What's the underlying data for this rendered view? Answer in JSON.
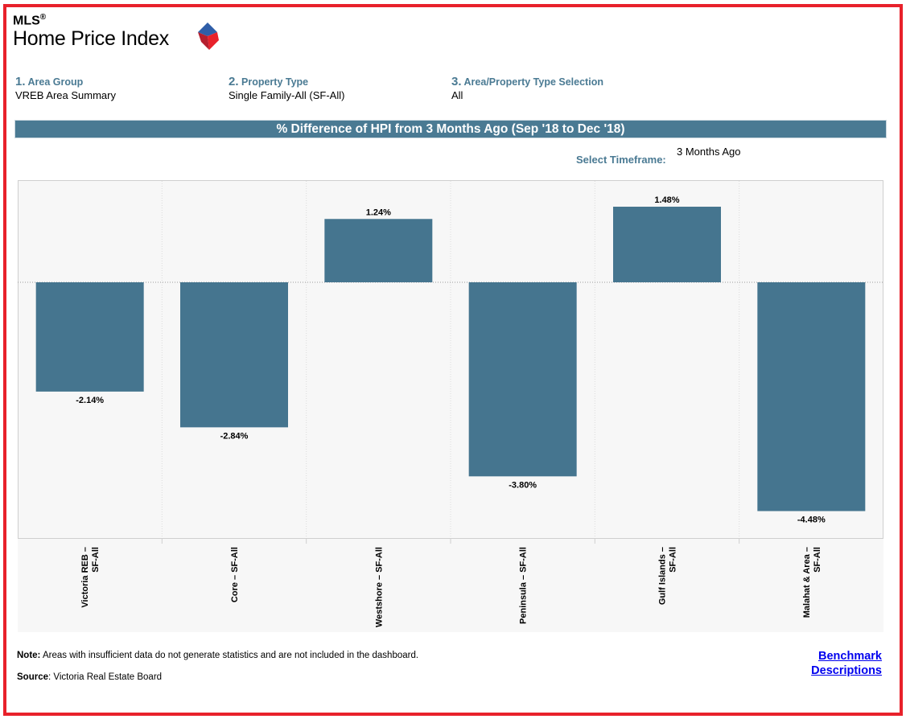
{
  "logo": {
    "mls": "MLS",
    "registered": "®",
    "title": "Home Price Index"
  },
  "filters": [
    {
      "num": "1.",
      "label": "Area Group",
      "value": "VREB Area Summary"
    },
    {
      "num": "2.",
      "label": "Property Type",
      "value": "Single Family-All (SF-All)"
    },
    {
      "num": "3.",
      "label": "Area/Property Type Selection",
      "value": "All"
    }
  ],
  "timeframe": {
    "label": "Select Timeframe:",
    "value": "3 Months Ago"
  },
  "colors": {
    "bar": "#45758f",
    "header": "#4a7a93",
    "frame": "#e8212b",
    "plot_bg": "#f7f7f7"
  },
  "chart_data": {
    "type": "bar",
    "title": "% Difference of HPI from 3 Months Ago (Sep '18 to Dec '18)",
    "categories": [
      [
        "Victoria REB –",
        "SF-All"
      ],
      [
        "Core – SF-All"
      ],
      [
        "Westshore – SF-All"
      ],
      [
        "Peninsula – SF-All"
      ],
      [
        "Gulf Islands –",
        "SF-All"
      ],
      [
        "Malahat & Area –",
        "SF-All"
      ]
    ],
    "values": [
      -2.14,
      -2.84,
      1.24,
      -3.8,
      1.48,
      -4.48
    ],
    "value_labels": [
      "-2.14%",
      "-2.84%",
      "1.24%",
      "-3.80%",
      "1.48%",
      "-4.48%"
    ],
    "ylim": [
      -5.0,
      2.0
    ],
    "grid": true,
    "zero_line": "dotted"
  },
  "footer": {
    "note_label": "Note:",
    "note_text": " Areas with insufficient data do not generate statistics and are not included in the dashboard.",
    "source_label": "Source",
    "source_text": ": Victoria Real Estate Board",
    "link_line1": "Benchmark",
    "link_line2": "Descriptions"
  }
}
